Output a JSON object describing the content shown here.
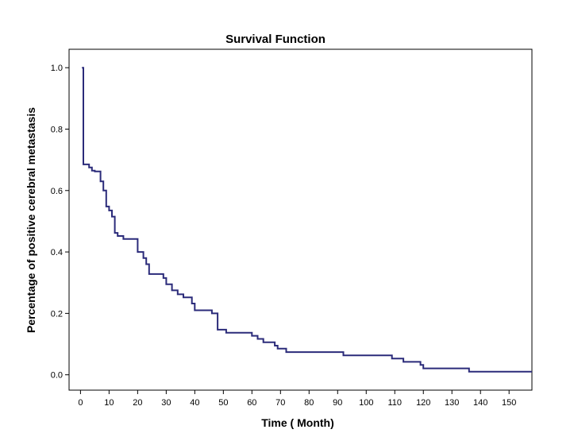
{
  "chart_data": {
    "type": "line",
    "step": true,
    "title": "Survival Function",
    "xlabel": "Time ( Month)",
    "ylabel": "Percentage of positive cerebral metastasis",
    "xlim": [
      -4,
      158
    ],
    "ylim": [
      -0.05,
      1.06
    ],
    "x_ticks": [
      0,
      10,
      20,
      30,
      40,
      50,
      60,
      70,
      80,
      90,
      100,
      110,
      120,
      130,
      140,
      150
    ],
    "x_tick_labels": [
      "0",
      "10",
      "20",
      "30",
      "40",
      "50",
      "60",
      "70",
      "80",
      "90",
      "100",
      "110",
      "120",
      "130",
      "140",
      "150"
    ],
    "y_ticks": [
      0.0,
      0.2,
      0.4,
      0.6,
      0.8,
      1.0
    ],
    "y_tick_labels": [
      "0.0",
      "0.2",
      "0.4",
      "0.6",
      "0.8",
      "1.0"
    ],
    "grid": false,
    "line_color": "#2b2b7a",
    "series": [
      {
        "x": [
          0.5,
          1,
          3,
          4,
          5,
          7,
          8,
          9,
          10,
          11,
          12,
          13,
          15,
          20,
          22,
          23,
          24,
          29,
          30,
          32,
          34,
          36,
          39,
          40,
          46,
          48,
          51,
          60,
          62,
          63,
          64,
          65,
          66,
          68,
          69,
          70,
          72,
          92,
          109,
          113,
          119,
          120,
          121,
          136,
          158
        ],
        "y": [
          1.0,
          0.685,
          0.675,
          0.665,
          0.662,
          0.63,
          0.6,
          0.548,
          0.535,
          0.515,
          0.462,
          0.452,
          0.442,
          0.4,
          0.38,
          0.36,
          0.328,
          0.315,
          0.295,
          0.275,
          0.262,
          0.252,
          0.232,
          0.21,
          0.2,
          0.147,
          0.137,
          0.127,
          0.117,
          0.117,
          0.106,
          0.106,
          0.106,
          0.095,
          0.085,
          0.085,
          0.074,
          0.063,
          0.053,
          0.042,
          0.032,
          0.021,
          0.021,
          0.01,
          0.01
        ]
      }
    ]
  }
}
